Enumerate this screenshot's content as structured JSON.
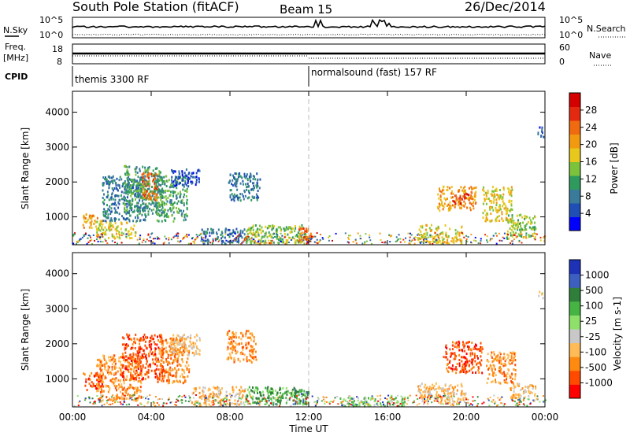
{
  "chart_data": {
    "header": {
      "station": "South Pole Station (fitACF)",
      "beam": "Beam 15",
      "date": "26/Dec/2014"
    },
    "noise_panel": {
      "left_label": "N.Sky",
      "right_label": "N.Search",
      "left_ticks": [
        "10^5",
        "10^0"
      ],
      "right_ticks": [
        "10^5",
        "10^0"
      ]
    },
    "freq_panel": {
      "left_label_line1": "Freq.",
      "left_label_line2": "[MHz]",
      "right_label": "Nave",
      "left_ticks": [
        "18",
        "8"
      ],
      "right_ticks": [
        "60",
        "0"
      ]
    },
    "cpid_panel": {
      "label": "CPID",
      "segments": [
        {
          "start_hour": 0,
          "text": "themis 3300 RF"
        },
        {
          "start_hour": 12,
          "text": "normalsound (fast) 157 RF"
        }
      ]
    },
    "x_axis": {
      "label": "Time UT",
      "range_hours": [
        0,
        24
      ],
      "ticks": [
        0,
        4,
        8,
        12,
        16,
        20,
        24
      ],
      "tick_labels": [
        "00:00",
        "04:00",
        "08:00",
        "12:00",
        "16:00",
        "20:00",
        "00:00"
      ]
    },
    "y_axis": {
      "label": "Slant Range [km]",
      "range_km": [
        200,
        4600
      ],
      "ticks": [
        1000,
        2000,
        3000,
        4000
      ],
      "tick_labels": [
        "1000",
        "2000",
        "3000",
        "4000"
      ]
    },
    "power_panel": {
      "type": "heatmap",
      "colorbar_label": "Power [dB]",
      "colorbar_ticks": [
        "4",
        "8",
        "12",
        "16",
        "20",
        "24",
        "28"
      ],
      "colors": [
        "#0000ff",
        "#1f4fb4",
        "#3a7a9a",
        "#2f9a5e",
        "#7cc23b",
        "#e8c81c",
        "#f19a10",
        "#f06a10",
        "#e32a10",
        "#d40000"
      ],
      "regions": [
        {
          "t0": 0.5,
          "t1": 1.5,
          "r0": 700,
          "r1": 1100,
          "level": 6
        },
        {
          "t0": 1.2,
          "t1": 3.2,
          "r0": 400,
          "r1": 900,
          "level": 5
        },
        {
          "t0": 1.5,
          "t1": 3.8,
          "r0": 900,
          "r1": 2200,
          "level": 2
        },
        {
          "t0": 2.6,
          "t1": 4.6,
          "r0": 1100,
          "r1": 2500,
          "level": 3
        },
        {
          "t0": 3.5,
          "t1": 4.3,
          "r0": 1500,
          "r1": 2300,
          "level": 7
        },
        {
          "t0": 4.2,
          "t1": 5.8,
          "r0": 900,
          "r1": 2200,
          "level": 3
        },
        {
          "t0": 5.0,
          "t1": 6.5,
          "r0": 1900,
          "r1": 2400,
          "level": 1
        },
        {
          "t0": 6.5,
          "t1": 8.8,
          "r0": 250,
          "r1": 700,
          "level": 2
        },
        {
          "t0": 7.9,
          "t1": 9.5,
          "r0": 1500,
          "r1": 2300,
          "level": 2
        },
        {
          "t0": 8.8,
          "t1": 11.8,
          "r0": 250,
          "r1": 800,
          "level": 4
        },
        {
          "t0": 11.3,
          "t1": 12.1,
          "r0": 300,
          "r1": 700,
          "level": 7
        },
        {
          "t0": 17.5,
          "t1": 19.8,
          "r0": 250,
          "r1": 800,
          "level": 5
        },
        {
          "t0": 18.5,
          "t1": 20.5,
          "r0": 1200,
          "r1": 1900,
          "level": 6
        },
        {
          "t0": 19.2,
          "t1": 20.2,
          "r0": 1400,
          "r1": 1700,
          "level": 8
        },
        {
          "t0": 20.8,
          "t1": 22.3,
          "r0": 900,
          "r1": 1900,
          "level": 5
        },
        {
          "t0": 22.0,
          "t1": 23.5,
          "r0": 400,
          "r1": 1100,
          "level": 4
        },
        {
          "t0": 23.6,
          "t1": 23.9,
          "r0": 3300,
          "r1": 3600,
          "level": 1
        }
      ]
    },
    "velocity_panel": {
      "type": "heatmap",
      "colorbar_label": "Velocity [m s-1]",
      "colorbar_ticks": [
        "1000",
        "500",
        "100",
        "25",
        "-25",
        "-100",
        "-500",
        "-1000"
      ],
      "colors": [
        "#ff0000",
        "#ff4a00",
        "#ff8a10",
        "#ffbb55",
        "#c8c8c8",
        "#8fe06a",
        "#46b443",
        "#2f7e3a",
        "#3c5fc0",
        "#1e32b8"
      ],
      "regions": [
        {
          "t0": 0.5,
          "t1": 1.5,
          "r0": 700,
          "r1": 1200,
          "level": 1
        },
        {
          "t0": 1.2,
          "t1": 3.5,
          "r0": 400,
          "r1": 1700,
          "level": 2
        },
        {
          "t0": 2.5,
          "t1": 4.6,
          "r0": 1000,
          "r1": 2300,
          "level": 1
        },
        {
          "t0": 4.3,
          "t1": 5.9,
          "r0": 900,
          "r1": 2200,
          "level": 2
        },
        {
          "t0": 5.0,
          "t1": 6.5,
          "r0": 1700,
          "r1": 2300,
          "level": 3
        },
        {
          "t0": 6.0,
          "t1": 8.8,
          "r0": 250,
          "r1": 800,
          "level": 3
        },
        {
          "t0": 7.8,
          "t1": 9.3,
          "r0": 1500,
          "r1": 2400,
          "level": 2
        },
        {
          "t0": 8.8,
          "t1": 11.8,
          "r0": 300,
          "r1": 800,
          "level": 6
        },
        {
          "t0": 11.2,
          "t1": 12.0,
          "r0": 300,
          "r1": 700,
          "level": 7
        },
        {
          "t0": 13.5,
          "t1": 17.0,
          "r0": 250,
          "r1": 500,
          "level": 5
        },
        {
          "t0": 17.5,
          "t1": 20.0,
          "r0": 300,
          "r1": 900,
          "level": 3
        },
        {
          "t0": 18.8,
          "t1": 20.8,
          "r0": 1200,
          "r1": 2100,
          "level": 1
        },
        {
          "t0": 21.0,
          "t1": 22.5,
          "r0": 900,
          "r1": 1800,
          "level": 2
        },
        {
          "t0": 22.2,
          "t1": 23.5,
          "r0": 400,
          "r1": 900,
          "level": 3
        },
        {
          "t0": 23.6,
          "t1": 23.9,
          "r0": 3300,
          "r1": 3600,
          "level": 4
        }
      ]
    }
  }
}
